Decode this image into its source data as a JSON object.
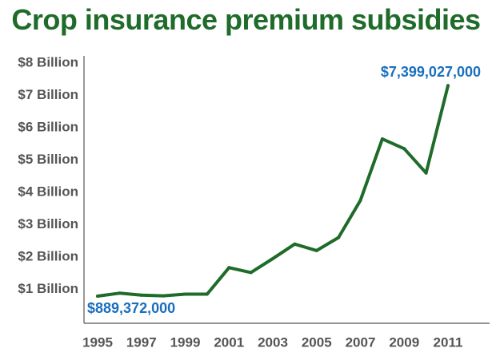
{
  "chart_data": {
    "type": "line",
    "title": "Crop insurance premium subsidies",
    "xlabel": "",
    "ylabel": "",
    "x": [
      1995,
      1996,
      1997,
      1998,
      1999,
      2000,
      2001,
      2002,
      2003,
      2004,
      2005,
      2006,
      2007,
      2008,
      2009,
      2010,
      2011
    ],
    "series": [
      {
        "values": [
          0.889372,
          0.98,
          0.92,
          0.9,
          0.95,
          0.95,
          1.77,
          1.62,
          2.05,
          2.5,
          2.3,
          2.7,
          3.85,
          5.75,
          5.45,
          4.7,
          7.399027
        ]
      }
    ],
    "y_tick_labels": [
      "$1 Billion",
      "$2 Billion",
      "$3 Billion",
      "$4 Billion",
      "$5 Billion",
      "$6 Billion",
      "$7 Billion",
      "$8 Billion"
    ],
    "x_tick_labels": [
      "1995",
      "1997",
      "1999",
      "2001",
      "2003",
      "2005",
      "2007",
      "2009",
      "2011"
    ],
    "annotations": {
      "first": "$889,372,000",
      "last": "$7,399,027,000"
    },
    "ylim": [
      0,
      8
    ],
    "xlim": [
      1995,
      2011
    ],
    "grid": false,
    "colors": {
      "line": "#1f6b2a",
      "title": "#1f6b2a",
      "annotation": "#1a6fbf",
      "axis": "#555555",
      "tick_text": "#555555"
    }
  }
}
